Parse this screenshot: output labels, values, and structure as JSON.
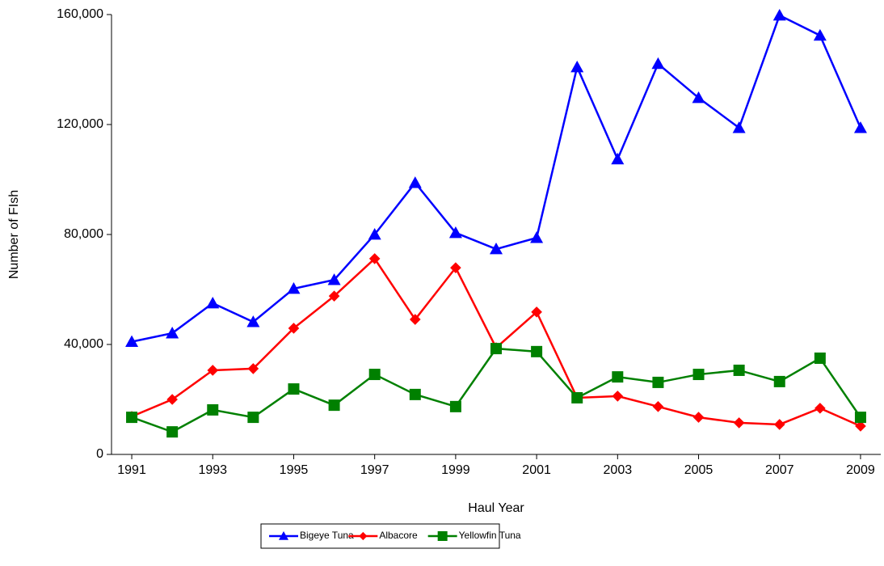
{
  "chart_data": {
    "type": "line",
    "xlabel": "Haul Year",
    "ylabel": "Number of FIsh",
    "x": [
      1991,
      1992,
      1993,
      1994,
      1995,
      1996,
      1997,
      1998,
      1999,
      2000,
      2001,
      2002,
      2003,
      2004,
      2005,
      2006,
      2007,
      2008,
      2009
    ],
    "xlim": [
      1990.5,
      2009.5
    ],
    "xticks": [
      1991,
      1993,
      1995,
      1997,
      1999,
      2001,
      2003,
      2005,
      2007,
      2009
    ],
    "ylim": [
      0,
      160000
    ],
    "yticks": [
      0,
      {
        "value": 40000,
        "label": "40,000"
      },
      {
        "value": 80000,
        "label": "80,000"
      },
      {
        "value": 120000,
        "label": "120,000"
      },
      {
        "value": 160000,
        "label": "160,000"
      }
    ],
    "legend": "bottom",
    "series": [
      {
        "name": "Bigeye Tuna",
        "color": "#0000ff",
        "marker": "triangle",
        "values": [
          41000,
          44100,
          55000,
          48200,
          60300,
          63500,
          80000,
          98800,
          80600,
          74700,
          78800,
          140900,
          107400,
          142100,
          129700,
          118800,
          159700,
          152400,
          118800
        ]
      },
      {
        "name": "Albacore",
        "color": "#ff0000",
        "marker": "diamond",
        "values": [
          13800,
          20000,
          30600,
          31200,
          45900,
          57600,
          71200,
          49100,
          67900,
          38800,
          51800,
          20600,
          21200,
          17400,
          13500,
          11500,
          10900,
          16800,
          10300
        ]
      },
      {
        "name": "Yellowfin Tuna",
        "color": "#008000",
        "marker": "square",
        "values": [
          13500,
          8200,
          16200,
          13500,
          23800,
          17900,
          29100,
          21800,
          17400,
          38500,
          37400,
          20600,
          28200,
          26200,
          29100,
          30600,
          26500,
          35000,
          13500
        ]
      }
    ]
  }
}
